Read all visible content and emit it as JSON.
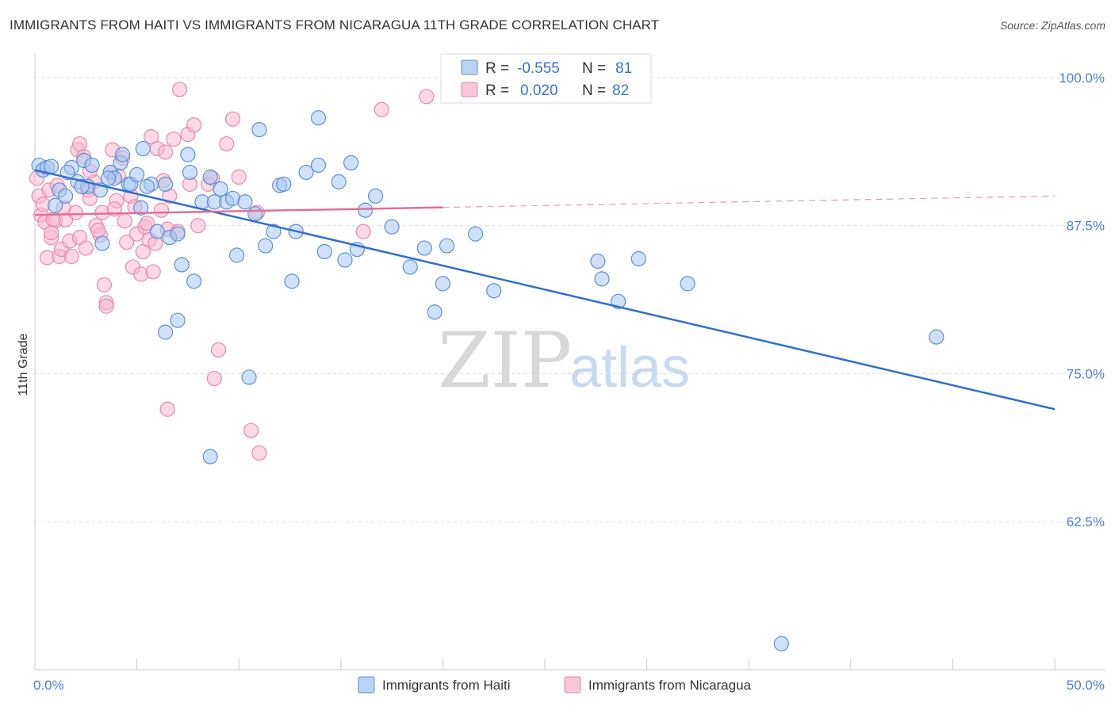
{
  "title": "IMMIGRANTS FROM HAITI VS IMMIGRANTS FROM NICARAGUA 11TH GRADE CORRELATION CHART",
  "source": "Source: ZipAtlas.com",
  "watermark": {
    "zip": "ZIP",
    "atlas": "atlas"
  },
  "colors": {
    "haiti_fill": "#a9c8f0",
    "haiti_stroke": "#5b8fd8",
    "haiti_line": "#2f6fd0",
    "nic_fill": "#f5b8cf",
    "nic_stroke": "#e88aab",
    "nic_line": "#e26f98",
    "grid": "#dddddd",
    "axis_text": "#4a7fd0"
  },
  "legend": {
    "r_label": "R =",
    "n_label": "N =",
    "haiti": {
      "r": "-0.555",
      "n": "81"
    },
    "nicaragua": {
      "r": "0.020",
      "n": "82"
    }
  },
  "chart_data": {
    "type": "scatter",
    "title": "IMMIGRANTS FROM HAITI VS IMMIGRANTS FROM NICARAGUA 11TH GRADE CORRELATION CHART",
    "xlabel": "",
    "ylabel": "11th Grade",
    "xlim": [
      0,
      50
    ],
    "ylim": [
      50,
      102
    ],
    "x_tick_labels": [
      {
        "value": 0,
        "label": "0.0%"
      },
      {
        "value": 50,
        "label": "50.0%"
      }
    ],
    "y_tick_labels": [
      {
        "value": 100,
        "label": "100.0%"
      },
      {
        "value": 87.5,
        "label": "87.5%"
      },
      {
        "value": 75,
        "label": "75.0%"
      },
      {
        "value": 62.5,
        "label": "62.5%"
      }
    ],
    "grid": true,
    "legend_position": "top-center",
    "series": [
      {
        "name": "Immigrants from Haiti",
        "trend": {
          "x": [
            0,
            50
          ],
          "y": [
            92.2,
            72.0
          ],
          "dashed_from": null
        },
        "points": [
          [
            0.2,
            92.6
          ],
          [
            0.4,
            92.2
          ],
          [
            0.6,
            92.4
          ],
          [
            0.8,
            92.5
          ],
          [
            1.0,
            89.2
          ],
          [
            1.2,
            90.5
          ],
          [
            1.5,
            90.0
          ],
          [
            1.8,
            92.4
          ],
          [
            2.1,
            91.2
          ],
          [
            2.4,
            93.0
          ],
          [
            2.6,
            90.8
          ],
          [
            2.8,
            92.6
          ],
          [
            3.2,
            90.5
          ],
          [
            3.3,
            86.0
          ],
          [
            3.7,
            92.0
          ],
          [
            3.9,
            91.5
          ],
          [
            4.2,
            92.8
          ],
          [
            4.3,
            93.5
          ],
          [
            4.6,
            91.0
          ],
          [
            4.7,
            91.0
          ],
          [
            5.0,
            91.8
          ],
          [
            5.2,
            89.0
          ],
          [
            5.3,
            94.0
          ],
          [
            5.7,
            91.0
          ],
          [
            6.0,
            87.0
          ],
          [
            6.4,
            91.0
          ],
          [
            6.6,
            86.5
          ],
          [
            7.0,
            86.8
          ],
          [
            7.2,
            84.2
          ],
          [
            7.5,
            93.5
          ],
          [
            7.6,
            92.0
          ],
          [
            7.8,
            82.8
          ],
          [
            8.2,
            89.5
          ],
          [
            8.6,
            91.6
          ],
          [
            8.8,
            89.5
          ],
          [
            9.1,
            90.6
          ],
          [
            9.4,
            89.5
          ],
          [
            9.7,
            89.8
          ],
          [
            9.9,
            85.0
          ],
          [
            10.3,
            89.5
          ],
          [
            10.8,
            88.5
          ],
          [
            11.0,
            95.6
          ],
          [
            11.3,
            85.8
          ],
          [
            11.7,
            87.0
          ],
          [
            12.0,
            90.9
          ],
          [
            12.2,
            91.0
          ],
          [
            12.6,
            82.8
          ],
          [
            12.8,
            87.0
          ],
          [
            13.3,
            92.0
          ],
          [
            13.9,
            92.6
          ],
          [
            13.9,
            96.6
          ],
          [
            14.2,
            85.3
          ],
          [
            14.9,
            91.2
          ],
          [
            15.2,
            84.6
          ],
          [
            15.5,
            92.8
          ],
          [
            15.8,
            85.5
          ],
          [
            16.2,
            88.8
          ],
          [
            16.7,
            90.0
          ],
          [
            17.5,
            87.4
          ],
          [
            18.4,
            84.0
          ],
          [
            19.1,
            85.6
          ],
          [
            19.6,
            80.2
          ],
          [
            20.0,
            82.6
          ],
          [
            20.2,
            85.8
          ],
          [
            21.6,
            86.8
          ],
          [
            22.5,
            82.0
          ],
          [
            27.6,
            84.5
          ],
          [
            27.8,
            83.0
          ],
          [
            28.6,
            81.1
          ],
          [
            29.6,
            84.7
          ],
          [
            32.0,
            82.6
          ],
          [
            44.2,
            78.1
          ],
          [
            8.6,
            68.0
          ],
          [
            7.0,
            79.5
          ],
          [
            6.4,
            78.5
          ],
          [
            10.5,
            74.7
          ],
          [
            36.6,
            52.2
          ],
          [
            5.5,
            90.8
          ],
          [
            3.6,
            91.5
          ],
          [
            2.3,
            90.8
          ],
          [
            1.6,
            92.0
          ]
        ]
      },
      {
        "name": "Immigrants from Nicaragua",
        "trend": {
          "x": [
            0,
            50
          ],
          "y": [
            88.4,
            90.0
          ],
          "dashed_from": 20
        },
        "points": [
          [
            0.1,
            91.5
          ],
          [
            0.2,
            90.0
          ],
          [
            0.3,
            88.4
          ],
          [
            0.5,
            87.8
          ],
          [
            0.6,
            84.8
          ],
          [
            0.7,
            90.5
          ],
          [
            0.8,
            86.5
          ],
          [
            1.0,
            87.9
          ],
          [
            1.2,
            84.9
          ],
          [
            1.3,
            85.5
          ],
          [
            1.5,
            88.0
          ],
          [
            1.7,
            86.2
          ],
          [
            1.8,
            84.9
          ],
          [
            2.0,
            88.6
          ],
          [
            2.1,
            93.9
          ],
          [
            2.2,
            94.4
          ],
          [
            2.4,
            93.3
          ],
          [
            2.6,
            90.5
          ],
          [
            2.7,
            89.8
          ],
          [
            2.9,
            91.2
          ],
          [
            3.0,
            87.5
          ],
          [
            3.2,
            86.7
          ],
          [
            3.3,
            88.6
          ],
          [
            3.4,
            82.5
          ],
          [
            3.5,
            81.0
          ],
          [
            3.7,
            92.0
          ],
          [
            3.8,
            93.9
          ],
          [
            4.0,
            89.6
          ],
          [
            4.1,
            91.7
          ],
          [
            4.3,
            93.2
          ],
          [
            4.5,
            86.1
          ],
          [
            4.7,
            90.0
          ],
          [
            4.8,
            84.0
          ],
          [
            5.0,
            86.8
          ],
          [
            5.2,
            83.4
          ],
          [
            5.3,
            85.3
          ],
          [
            5.4,
            87.4
          ],
          [
            5.6,
            86.3
          ],
          [
            5.7,
            95.0
          ],
          [
            5.8,
            83.6
          ],
          [
            6.0,
            94.0
          ],
          [
            6.3,
            91.3
          ],
          [
            6.4,
            93.7
          ],
          [
            6.5,
            87.2
          ],
          [
            6.6,
            90.0
          ],
          [
            6.8,
            94.8
          ],
          [
            7.0,
            87.0
          ],
          [
            7.1,
            99.0
          ],
          [
            7.5,
            95.2
          ],
          [
            7.6,
            91.0
          ],
          [
            7.8,
            96.0
          ],
          [
            8.0,
            87.5
          ],
          [
            8.5,
            91.0
          ],
          [
            8.7,
            91.5
          ],
          [
            9.0,
            77.0
          ],
          [
            9.4,
            94.4
          ],
          [
            9.7,
            96.5
          ],
          [
            10.0,
            91.6
          ],
          [
            10.6,
            70.2
          ],
          [
            10.9,
            88.6
          ],
          [
            11.0,
            68.3
          ],
          [
            17.0,
            97.3
          ],
          [
            19.2,
            98.4
          ],
          [
            16.1,
            87.0
          ],
          [
            8.8,
            74.6
          ],
          [
            6.5,
            72.0
          ],
          [
            3.5,
            80.7
          ],
          [
            2.2,
            86.5
          ],
          [
            1.4,
            89.0
          ],
          [
            0.9,
            88.0
          ],
          [
            4.4,
            87.9
          ],
          [
            5.5,
            87.7
          ],
          [
            3.9,
            88.9
          ],
          [
            2.7,
            92.1
          ],
          [
            1.1,
            90.9
          ],
          [
            0.4,
            89.3
          ],
          [
            4.9,
            89.1
          ],
          [
            6.2,
            88.8
          ],
          [
            2.5,
            85.6
          ],
          [
            0.8,
            86.9
          ],
          [
            3.1,
            87.1
          ],
          [
            5.9,
            86.0
          ]
        ]
      }
    ]
  },
  "bottom_legend": [
    "Immigrants from Haiti",
    "Immigrants from Nicaragua"
  ]
}
